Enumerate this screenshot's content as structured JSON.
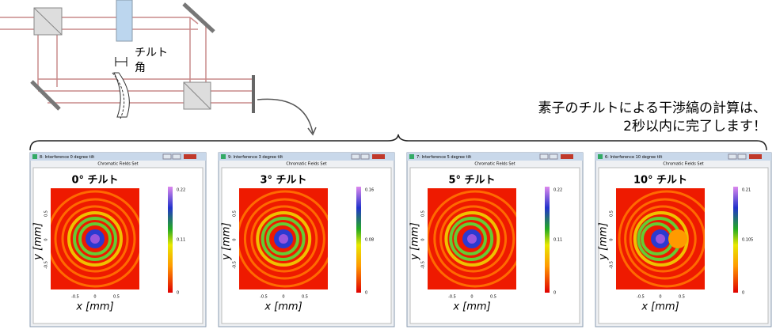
{
  "diagram": {
    "tilt_label": [
      "チルト",
      "角"
    ]
  },
  "caption": [
    "素子のチルトによる干渉縞の計算は、",
    "2秒以内に完了します！"
  ],
  "windows": [
    {
      "window_title": "8: Interference 0 degree tilt",
      "subtitle": "Chromatic Fields Set",
      "plot_title": "0° チルト",
      "colorbar_labels": [
        "0.22",
        "0.11",
        "0"
      ],
      "x_ticks": [
        "-0.5",
        "0",
        "0.5"
      ],
      "y_ticks": [
        "0.5",
        "0",
        "-0.5"
      ],
      "x_label": "x [mm]",
      "y_label": "y [mm]"
    },
    {
      "window_title": "9: Interference 3 degree tilt",
      "subtitle": "Chromatic Fields Set",
      "plot_title": "3° チルト",
      "colorbar_labels": [
        "0.16",
        "0.08",
        "0"
      ],
      "x_ticks": [
        "-0.5",
        "0",
        "0.5"
      ],
      "y_ticks": [
        "0.5",
        "0",
        "-0.5"
      ],
      "x_label": "x [mm]",
      "y_label": "y [mm]"
    },
    {
      "window_title": "7: Interference 5 degree tilt",
      "subtitle": "Chromatic Fields Set",
      "plot_title": "5° チルト",
      "colorbar_labels": [
        "0.22",
        "0.11",
        "0"
      ],
      "x_ticks": [
        "-0.5",
        "0",
        "0.5"
      ],
      "y_ticks": [
        "0.5",
        "0",
        "-0.5"
      ],
      "x_label": "x [mm]",
      "y_label": "y [mm]"
    },
    {
      "window_title": "6: Interference 10 degree tilt",
      "subtitle": "Chromatic Fields Set",
      "plot_title": "10° チルト",
      "colorbar_labels": [
        "0.21",
        "0.105",
        "0"
      ],
      "x_ticks": [
        "-0.5",
        "0",
        "0.5"
      ],
      "y_ticks": [
        "0.5",
        "0",
        "-0.5"
      ],
      "x_label": "x [mm]",
      "y_label": "y [mm]"
    }
  ]
}
